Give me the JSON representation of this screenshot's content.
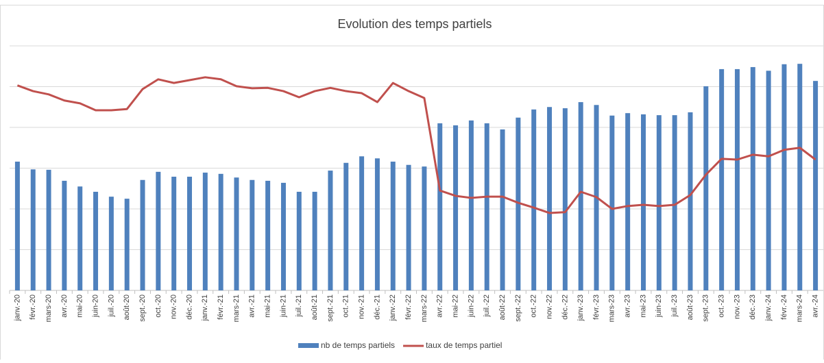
{
  "chart_data": {
    "type": "bar_line",
    "title": "Evolution des temps partiels",
    "categories": [
      "janv.-20",
      "févr.-20",
      "mars-20",
      "avr.-20",
      "mai-20",
      "juin-20",
      "juil.-20",
      "août-20",
      "sept.-20",
      "oct.-20",
      "nov.-20",
      "déc.-20",
      "janv.-21",
      "févr.-21",
      "mars-21",
      "avr.-21",
      "mai-21",
      "juin-21",
      "juil.-21",
      "août-21",
      "sept.-21",
      "oct.-21",
      "nov.-21",
      "déc.-21",
      "janv.-22",
      "févr.-22",
      "mars-22",
      "avr.-22",
      "mai-22",
      "juin-22",
      "juil.-22",
      "août-22",
      "sept.-22",
      "oct.-22",
      "nov.-22",
      "déc.-22",
      "janv.-23",
      "févr.-23",
      "mars-23",
      "avr.-23",
      "mai-23",
      "juin-23",
      "juil.-23",
      "août-23",
      "sept.-23",
      "oct.-23",
      "nov.-23",
      "déc.-23",
      "janv.-24",
      "févr.-24",
      "mars-24",
      "avr.-24"
    ],
    "series": [
      {
        "name": "nb de temps partiels",
        "type": "bar",
        "color": "#4f81bd",
        "values": [
          3.16,
          2.97,
          2.96,
          2.69,
          2.55,
          2.42,
          2.3,
          2.25,
          2.71,
          2.91,
          2.79,
          2.79,
          2.89,
          2.86,
          2.77,
          2.71,
          2.69,
          2.64,
          2.42,
          2.42,
          2.94,
          3.13,
          3.29,
          3.24,
          3.16,
          3.08,
          3.04,
          4.1,
          4.05,
          4.17,
          4.1,
          3.95,
          4.24,
          4.44,
          4.5,
          4.47,
          4.62,
          4.55,
          4.29,
          4.35,
          4.32,
          4.3,
          4.3,
          4.37,
          5.01,
          5.43,
          5.43,
          5.48,
          5.39,
          5.55,
          5.56,
          5.14
        ]
      },
      {
        "name": "taux de temps partiel",
        "type": "line",
        "color": "#c0504d",
        "values": [
          5.03,
          4.89,
          4.81,
          4.66,
          4.59,
          4.42,
          4.42,
          4.45,
          4.94,
          5.18,
          5.09,
          5.16,
          5.23,
          5.18,
          5.01,
          4.96,
          4.97,
          4.89,
          4.74,
          4.89,
          4.97,
          4.89,
          4.84,
          4.62,
          5.09,
          4.89,
          4.72,
          2.45,
          2.32,
          2.27,
          2.3,
          2.3,
          2.15,
          2.03,
          1.9,
          1.92,
          2.42,
          2.29,
          2.0,
          2.07,
          2.1,
          2.07,
          2.1,
          2.34,
          2.84,
          3.23,
          3.21,
          3.33,
          3.29,
          3.45,
          3.5,
          3.21
        ]
      }
    ],
    "ylim": [
      0,
      6
    ],
    "yticks": [
      0,
      1,
      2,
      3,
      4,
      5,
      6
    ],
    "grid": true,
    "legend": "bottom"
  }
}
